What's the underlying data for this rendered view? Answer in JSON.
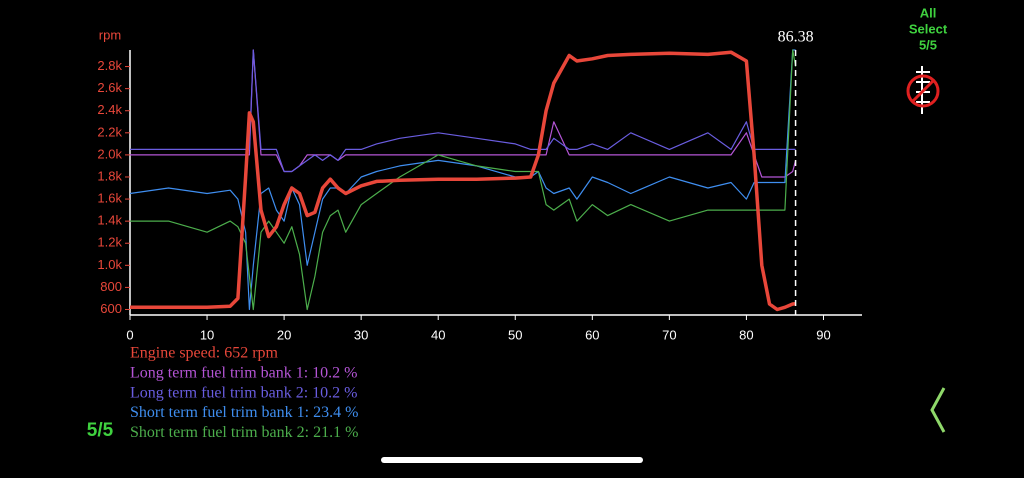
{
  "chart_data": {
    "type": "line",
    "y_label": "rpm",
    "cursor_x": 86.38,
    "xlim": [
      0,
      95
    ],
    "xticks": [
      0,
      10,
      20,
      30,
      40,
      50,
      60,
      70,
      80,
      90
    ],
    "ylim": [
      550,
      2950
    ],
    "yticks": [
      600,
      800,
      {
        "value": 1000,
        "label": "1.0k"
      },
      {
        "value": 1200,
        "label": "1.2k"
      },
      {
        "value": 1400,
        "label": "1.4k"
      },
      {
        "value": 1600,
        "label": "1.6k"
      },
      {
        "value": 1800,
        "label": "1.8k"
      },
      {
        "value": 2000,
        "label": "2.0k"
      },
      {
        "value": 2200,
        "label": "2.2k"
      },
      {
        "value": 2400,
        "label": "2.4k"
      },
      {
        "value": 2600,
        "label": "2.6k"
      },
      {
        "value": 2800,
        "label": "2.8k"
      }
    ],
    "x": [
      0,
      5,
      10,
      13,
      14,
      15,
      15.5,
      16,
      17,
      18,
      19,
      20,
      21,
      22,
      23,
      24,
      25,
      26,
      27,
      28,
      30,
      32,
      35,
      40,
      45,
      50,
      52,
      53,
      54,
      55,
      57,
      58,
      60,
      62,
      65,
      70,
      75,
      78,
      80,
      81,
      82,
      83,
      84,
      85,
      86,
      86.38
    ],
    "series": [
      {
        "name": "Long term fuel trim bank 1: 10.2 %",
        "color": "#b455d6",
        "values": [
          2000,
          2000,
          2000,
          2000,
          2000,
          2000,
          2000,
          2950,
          2000,
          2000,
          2000,
          1850,
          1850,
          1900,
          2000,
          2000,
          2000,
          2000,
          1950,
          2000,
          2000,
          2000,
          2000,
          2000,
          2000,
          2000,
          2000,
          2000,
          2000,
          2300,
          2000,
          2000,
          2000,
          2000,
          2000,
          2000,
          2000,
          2000,
          2200,
          2000,
          1800,
          1800,
          1800,
          1800,
          1850,
          1950
        ]
      },
      {
        "name": "Long term fuel trim bank 2: 10.2 %",
        "color": "#6a5de0",
        "values": [
          2050,
          2050,
          2050,
          2050,
          2050,
          2050,
          2050,
          2950,
          2050,
          2050,
          2050,
          1850,
          1850,
          1900,
          1950,
          2000,
          1950,
          2000,
          1950,
          2050,
          2050,
          2100,
          2150,
          2200,
          2150,
          2100,
          2050,
          2050,
          2050,
          2150,
          2050,
          2050,
          2100,
          2050,
          2200,
          2050,
          2200,
          2050,
          2300,
          2050,
          2050,
          2050,
          2050,
          2050,
          2050,
          2050
        ]
      },
      {
        "name": "Short term fuel trim bank 1: 23.4 %",
        "color": "#3f8ef0",
        "values": [
          1650,
          1700,
          1650,
          1680,
          1600,
          1300,
          600,
          1000,
          1650,
          1700,
          1500,
          1400,
          1700,
          1550,
          1000,
          1300,
          1600,
          1700,
          1700,
          1650,
          1800,
          1850,
          1900,
          1950,
          1900,
          1800,
          1800,
          1850,
          1700,
          1650,
          1700,
          1600,
          1800,
          1750,
          1650,
          1800,
          1700,
          1750,
          1600,
          1750,
          1750,
          1750,
          1750,
          1750,
          2950,
          2950
        ]
      },
      {
        "name": "Short term fuel trim bank 2: 21.1 %",
        "color": "#4cae4c",
        "values": [
          1400,
          1400,
          1300,
          1400,
          1350,
          1200,
          900,
          600,
          1300,
          1400,
          1300,
          1200,
          1350,
          1100,
          600,
          900,
          1300,
          1450,
          1500,
          1300,
          1550,
          1650,
          1800,
          2000,
          1900,
          1850,
          1850,
          1850,
          1550,
          1500,
          1600,
          1400,
          1550,
          1450,
          1550,
          1400,
          1500,
          1500,
          1500,
          1500,
          1500,
          1500,
          1500,
          1500,
          2950,
          2800
        ]
      },
      {
        "name": "Engine speed: 652 rpm",
        "color": "#e8473a",
        "values": [
          620,
          620,
          620,
          630,
          700,
          1800,
          2380,
          2300,
          1500,
          1260,
          1350,
          1550,
          1700,
          1650,
          1450,
          1480,
          1700,
          1780,
          1700,
          1650,
          1720,
          1760,
          1770,
          1780,
          1780,
          1790,
          1800,
          2000,
          2400,
          2650,
          2900,
          2850,
          2870,
          2900,
          2910,
          2920,
          2910,
          2930,
          2850,
          2000,
          1000,
          650,
          600,
          620,
          650,
          652
        ]
      }
    ]
  },
  "ui": {
    "all_select": [
      "All",
      "Select",
      "5/5"
    ],
    "page_indicator": "5/5"
  }
}
